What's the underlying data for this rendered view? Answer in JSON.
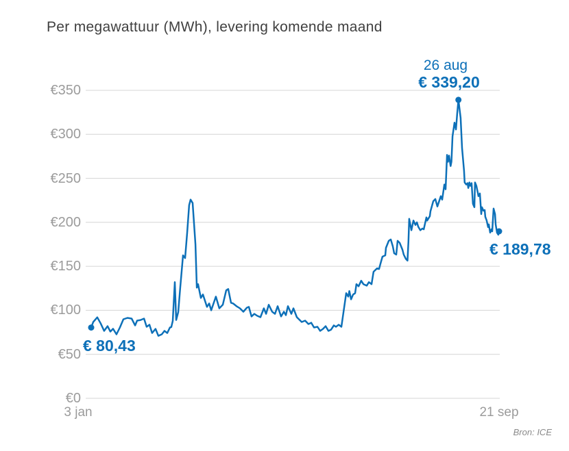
{
  "title": "Per megawattuur (MWh), levering komende maand",
  "source": "Bron: ICE",
  "colors": {
    "line": "#0d70b8",
    "annotation_text": "#0d70b8",
    "axis_label": "#9b9b9b",
    "gridline": "#d4d4d4",
    "title_text": "#3f3f3f",
    "source_text": "#8a8a8a",
    "background": "#ffffff"
  },
  "annotations": {
    "start": {
      "label": "€ 80,43",
      "value": 80.43,
      "day": 0
    },
    "peak": {
      "date_label": "26 aug",
      "label": "€ 339,20",
      "value": 339.2,
      "day": 235
    },
    "end": {
      "label": "€ 189,78",
      "value": 189.78,
      "day": 261
    }
  },
  "chart_data": {
    "type": "line",
    "title": "Per megawattuur (MWh), levering komende maand",
    "unit": "EUR per MWh",
    "grid": true,
    "legend": false,
    "x_axis": {
      "start_label": "3 jan",
      "end_label": "21 sep",
      "days_total": 261
    },
    "y_axis": {
      "range": [
        0,
        350
      ],
      "ticks": [
        {
          "value": 0,
          "label": "€0"
        },
        {
          "value": 50,
          "label": "€50"
        },
        {
          "value": 100,
          "label": "€100"
        },
        {
          "value": 150,
          "label": "€150"
        },
        {
          "value": 200,
          "label": "€200"
        },
        {
          "value": 250,
          "label": "€250"
        },
        {
          "value": 300,
          "label": "€300"
        },
        {
          "value": 350,
          "label": "€350"
        }
      ]
    },
    "points": [
      [
        0,
        80.43
      ],
      [
        1.3,
        86.7
      ],
      [
        3.9,
        92
      ],
      [
        6.1,
        85
      ],
      [
        8.3,
        76.6
      ],
      [
        10.5,
        82
      ],
      [
        12.3,
        75.8
      ],
      [
        14,
        79
      ],
      [
        16.2,
        72.7
      ],
      [
        18.4,
        80.5
      ],
      [
        20.6,
        89.8
      ],
      [
        23.2,
        91.4
      ],
      [
        25.9,
        90.6
      ],
      [
        28.1,
        82.8
      ],
      [
        29.4,
        88.3
      ],
      [
        31.6,
        89
      ],
      [
        33.8,
        90.6
      ],
      [
        35.5,
        81.3
      ],
      [
        37.3,
        83.6
      ],
      [
        39,
        74.2
      ],
      [
        41.2,
        78.9
      ],
      [
        43,
        71
      ],
      [
        45.2,
        72.7
      ],
      [
        46.9,
        76.6
      ],
      [
        48.7,
        74.2
      ],
      [
        50.4,
        80.5
      ],
      [
        51.3,
        81
      ],
      [
        52.2,
        88
      ],
      [
        53.5,
        132
      ],
      [
        54.4,
        89
      ],
      [
        55.7,
        98
      ],
      [
        57,
        125.8
      ],
      [
        58.8,
        162.5
      ],
      [
        60.1,
        159.4
      ],
      [
        61.4,
        188
      ],
      [
        62.7,
        219.5
      ],
      [
        63.6,
        225.8
      ],
      [
        64.9,
        221.9
      ],
      [
        66.7,
        175
      ],
      [
        67.6,
        125.8
      ],
      [
        68.4,
        129.7
      ],
      [
        70.2,
        114
      ],
      [
        71.5,
        118
      ],
      [
        74.1,
        103.9
      ],
      [
        75.5,
        107.8
      ],
      [
        76.8,
        100
      ],
      [
        79.8,
        115.6
      ],
      [
        82,
        102.3
      ],
      [
        84.2,
        106.3
      ],
      [
        86.4,
        122.7
      ],
      [
        87.7,
        124.2
      ],
      [
        89.5,
        108.6
      ],
      [
        90.8,
        107.8
      ],
      [
        93,
        104.7
      ],
      [
        95.2,
        102.3
      ],
      [
        97.4,
        98.4
      ],
      [
        99.6,
        103
      ],
      [
        100.9,
        103.9
      ],
      [
        102.6,
        93
      ],
      [
        104.4,
        96
      ],
      [
        106.2,
        93.8
      ],
      [
        108.3,
        92.2
      ],
      [
        110.5,
        102.3
      ],
      [
        111.9,
        96
      ],
      [
        113.6,
        106.3
      ],
      [
        115.8,
        98.4
      ],
      [
        117.6,
        96
      ],
      [
        119.3,
        104.7
      ],
      [
        121.5,
        93
      ],
      [
        123.3,
        98.4
      ],
      [
        124.6,
        94.5
      ],
      [
        125.9,
        104.7
      ],
      [
        128.1,
        96
      ],
      [
        129.4,
        102.3
      ],
      [
        131.6,
        92.2
      ],
      [
        134.7,
        86.7
      ],
      [
        136.9,
        88.3
      ],
      [
        139,
        84.4
      ],
      [
        140.8,
        85.9
      ],
      [
        142.6,
        80.5
      ],
      [
        144.8,
        81.3
      ],
      [
        146.5,
        76.6
      ],
      [
        148.3,
        78.9
      ],
      [
        150,
        82
      ],
      [
        151.8,
        76.6
      ],
      [
        153.5,
        78
      ],
      [
        155.3,
        82.8
      ],
      [
        156.6,
        81.3
      ],
      [
        158.4,
        83.6
      ],
      [
        160.1,
        81.3
      ],
      [
        163.2,
        119.5
      ],
      [
        164.5,
        115.6
      ],
      [
        165.2,
        121.9
      ],
      [
        166.3,
        112.5
      ],
      [
        167.6,
        118
      ],
      [
        168.9,
        119.5
      ],
      [
        169.7,
        129.7
      ],
      [
        171.1,
        127.3
      ],
      [
        172.8,
        133.6
      ],
      [
        174.2,
        129.7
      ],
      [
        176.3,
        128
      ],
      [
        177.7,
        132
      ],
      [
        179.4,
        129.7
      ],
      [
        180.7,
        143.8
      ],
      [
        182.9,
        147.7
      ],
      [
        184.2,
        146.9
      ],
      [
        185.1,
        153
      ],
      [
        186.4,
        161
      ],
      [
        188.2,
        162.5
      ],
      [
        188.6,
        171
      ],
      [
        190.4,
        179
      ],
      [
        191.7,
        180.5
      ],
      [
        193,
        172.7
      ],
      [
        193.9,
        164.8
      ],
      [
        195.2,
        163.3
      ],
      [
        196.1,
        179
      ],
      [
        197.4,
        176.6
      ],
      [
        199.2,
        168.8
      ],
      [
        200,
        163.3
      ],
      [
        201.3,
        158.6
      ],
      [
        202.4,
        156.5
      ],
      [
        203,
        178
      ],
      [
        203.5,
        204
      ],
      [
        204.9,
        191
      ],
      [
        206.2,
        202
      ],
      [
        207.5,
        197
      ],
      [
        208.4,
        200
      ],
      [
        209.3,
        195
      ],
      [
        210.6,
        191
      ],
      [
        211.9,
        193
      ],
      [
        212.8,
        192
      ],
      [
        214.5,
        205.6
      ],
      [
        215,
        202
      ],
      [
        216.7,
        207
      ],
      [
        217.1,
        212.5
      ],
      [
        218.9,
        224
      ],
      [
        220.2,
        226.5
      ],
      [
        221.5,
        218
      ],
      [
        223.7,
        229.7
      ],
      [
        224.6,
        225.8
      ],
      [
        226,
        243
      ],
      [
        226.8,
        237.5
      ],
      [
        227.7,
        276.6
      ],
      [
        228.3,
        268.8
      ],
      [
        229,
        275.8
      ],
      [
        230,
        264
      ],
      [
        230.5,
        268.8
      ],
      [
        231.2,
        297.7
      ],
      [
        232.5,
        313.3
      ],
      [
        233.4,
        305.5
      ],
      [
        234.2,
        323.4
      ],
      [
        235,
        339.2
      ],
      [
        236.4,
        318.8
      ],
      [
        237.3,
        284.4
      ],
      [
        238.6,
        258.6
      ],
      [
        239,
        245.3
      ],
      [
        240,
        243
      ],
      [
        240.8,
        244.5
      ],
      [
        241.3,
        239
      ],
      [
        242,
        245.3
      ],
      [
        242.6,
        241.4
      ],
      [
        243.4,
        244.5
      ],
      [
        244.3,
        221
      ],
      [
        245.2,
        217.2
      ],
      [
        245.6,
        245.3
      ],
      [
        246.5,
        241.4
      ],
      [
        247.4,
        233.6
      ],
      [
        247.8,
        229.7
      ],
      [
        248.7,
        232.8
      ],
      [
        249.6,
        209.4
      ],
      [
        250,
        217.2
      ],
      [
        251,
        213.3
      ],
      [
        251.8,
        214
      ],
      [
        252.2,
        206.3
      ],
      [
        253,
        202.3
      ],
      [
        254,
        194.5
      ],
      [
        254.4,
        197.7
      ],
      [
        255.3,
        188.3
      ],
      [
        256.2,
        192.2
      ],
      [
        256.6,
        189.8
      ],
      [
        257.5,
        215.6
      ],
      [
        258.4,
        209.4
      ],
      [
        258.8,
        197.7
      ],
      [
        259.7,
        188.3
      ],
      [
        260.5,
        186
      ],
      [
        261,
        189.78
      ]
    ]
  }
}
